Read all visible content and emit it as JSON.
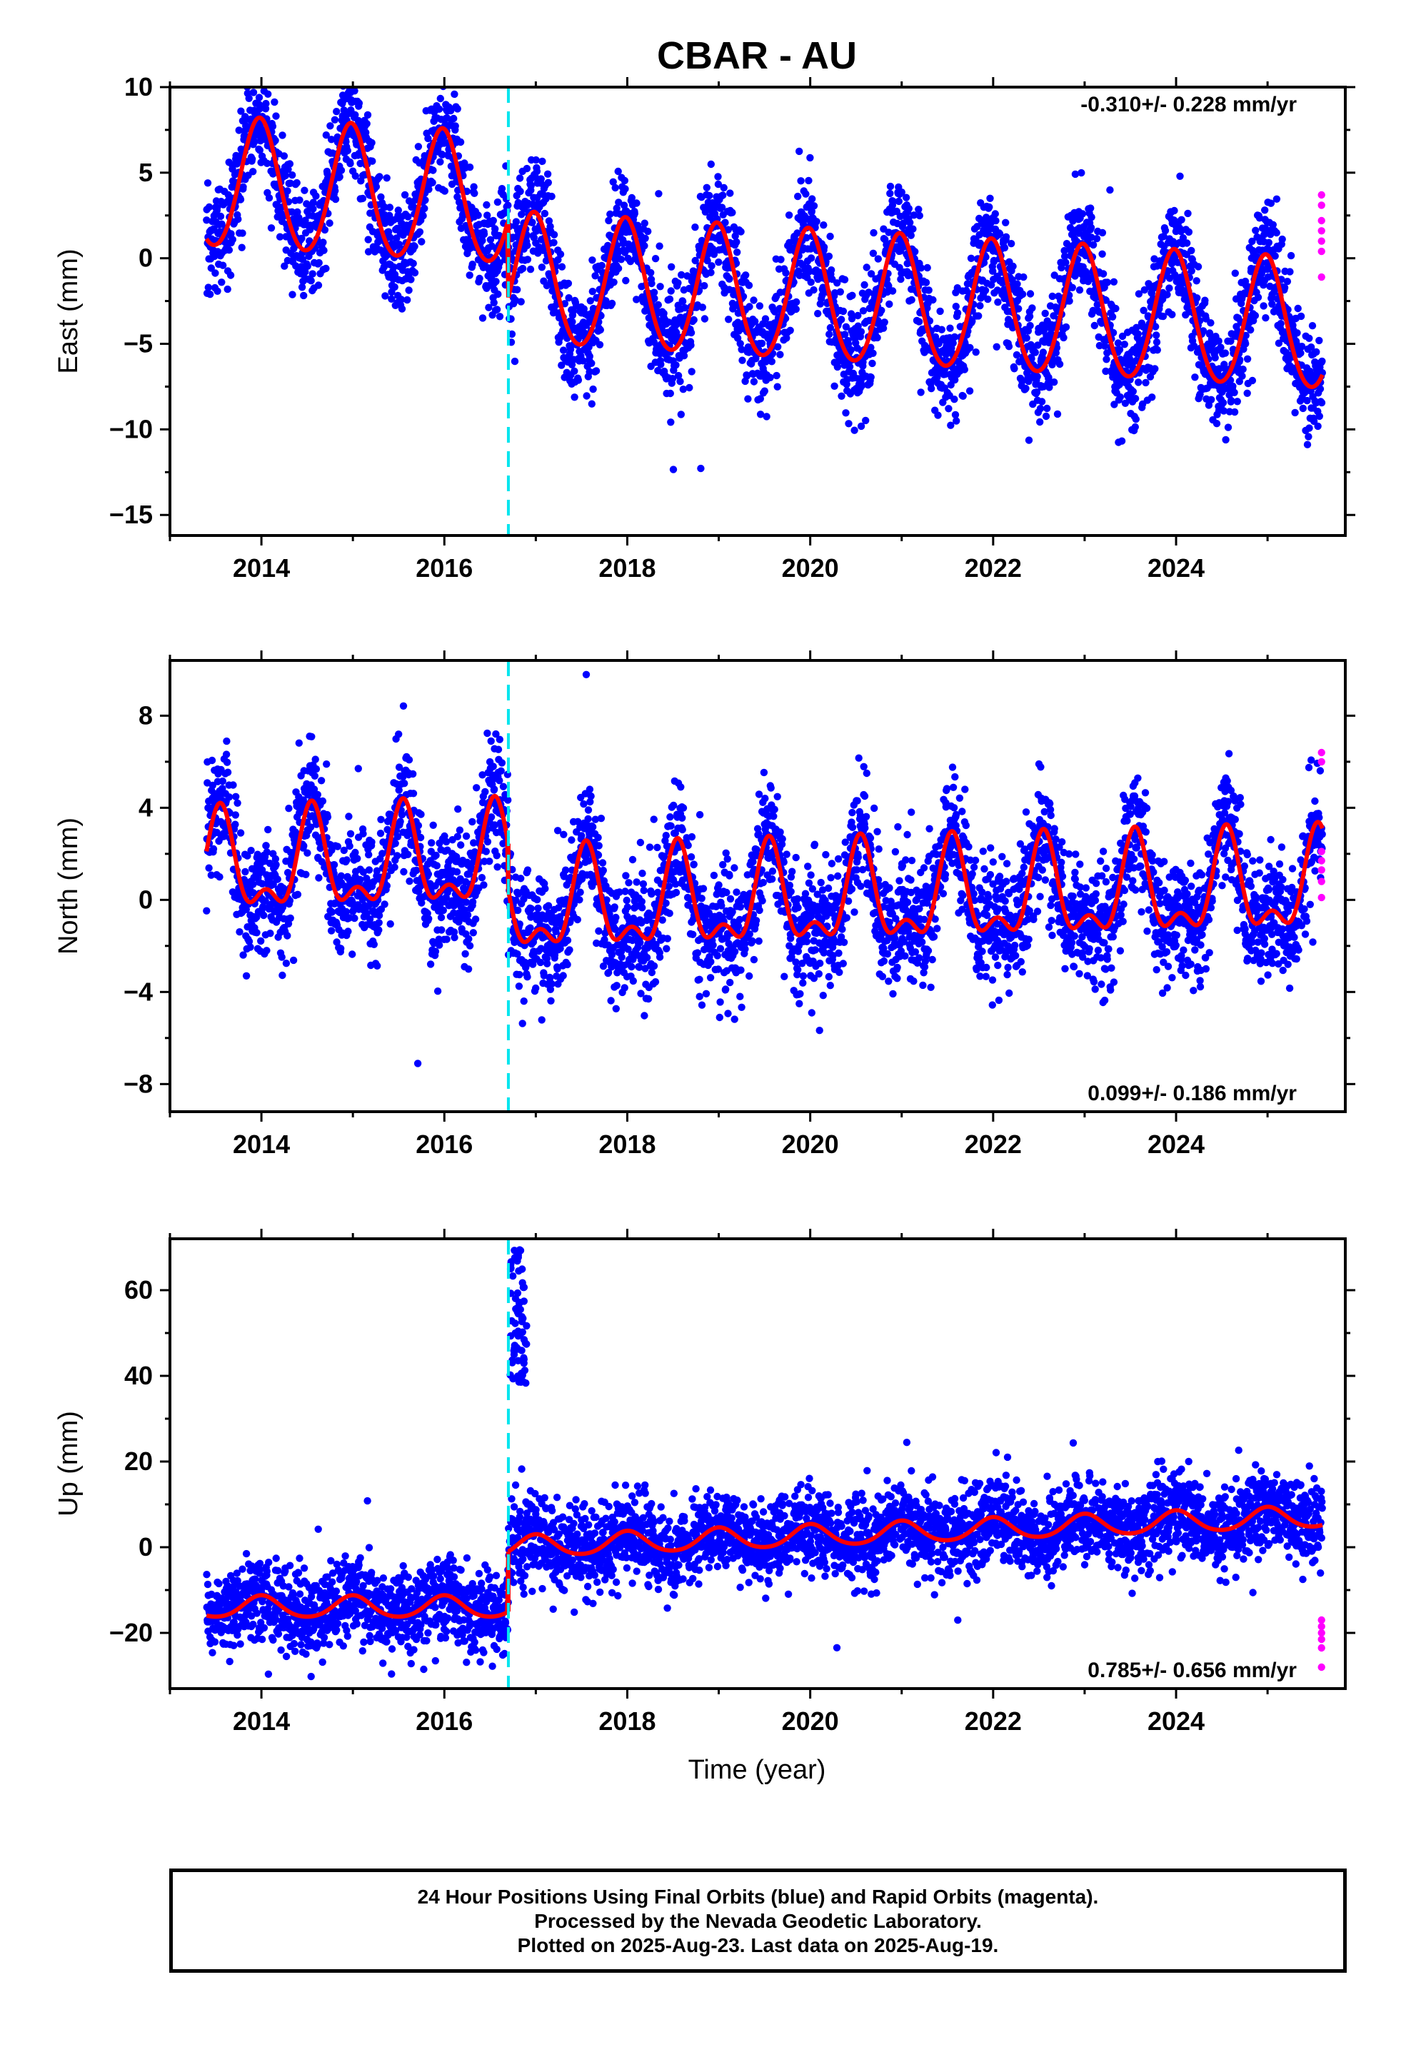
{
  "chart_data": [
    {
      "type": "scatter",
      "title": "CBAR - AU",
      "ylabel": "East (mm)",
      "xlim": [
        2013.0,
        2025.85
      ],
      "ylim": [
        -16.2,
        10.0
      ],
      "yticks": [
        10,
        5,
        0,
        -5,
        -10,
        -15
      ],
      "xticks": [
        2014,
        2016,
        2018,
        2020,
        2022,
        2024
      ],
      "grid": false,
      "rate_annotation": "-0.310+/- 0.228 mm/yr",
      "rate_annotation_position": "top-right",
      "equipment_change_year": 2016.7,
      "model": {
        "trend_segments": [
          {
            "from": 2013.4,
            "to": 2016.7,
            "intercept_at_start": 4.3,
            "slope_mm_per_yr": -0.31
          },
          {
            "from": 2016.7,
            "to": 2025.6,
            "intercept_at_start": -1.3,
            "slope_mm_per_yr": -0.31
          }
        ],
        "annual_amplitude": 3.8,
        "annual_peak_fraction": 0.98,
        "semiannual_amplitude": 0.3,
        "scatter_sd": 1.6
      },
      "series": [
        {
          "name": "Final Orbits",
          "color": "#0000ff",
          "kind": "points",
          "n": 3900
        },
        {
          "name": "Rapid Orbits",
          "color": "#ff00ff",
          "kind": "points",
          "x": [
            2025.59,
            2025.59,
            2025.59,
            2025.59,
            2025.59,
            2025.59,
            2025.59
          ],
          "y": [
            3.7,
            3.1,
            2.2,
            1.6,
            1.0,
            0.4,
            -1.1
          ]
        },
        {
          "name": "Model",
          "color": "#ff0000",
          "kind": "line"
        }
      ]
    },
    {
      "type": "scatter",
      "ylabel": "North (mm)",
      "xlim": [
        2013.0,
        2025.85
      ],
      "ylim": [
        -9.2,
        10.4
      ],
      "yticks": [
        8,
        4,
        0,
        -4,
        -8
      ],
      "xticks": [
        2014,
        2016,
        2018,
        2020,
        2022,
        2024
      ],
      "grid": false,
      "rate_annotation": "0.099+/- 0.186 mm/yr",
      "rate_annotation_position": "bottom-right",
      "equipment_change_year": 2016.7,
      "model": {
        "trend_segments": [
          {
            "from": 2013.4,
            "to": 2016.7,
            "intercept_at_start": 1.3,
            "slope_mm_per_yr": 0.1
          },
          {
            "from": 2016.7,
            "to": 2025.6,
            "intercept_at_start": -0.4,
            "slope_mm_per_yr": 0.1
          }
        ],
        "annual_amplitude": 1.9,
        "annual_peak_fraction": 0.55,
        "semiannual_amplitude": 1.0,
        "scatter_sd": 1.3
      },
      "series": [
        {
          "name": "Final Orbits",
          "color": "#0000ff",
          "kind": "points",
          "n": 3900
        },
        {
          "name": "Rapid Orbits",
          "color": "#ff00ff",
          "kind": "points",
          "x": [
            2025.59,
            2025.59,
            2025.59,
            2025.59,
            2025.59,
            2025.59,
            2025.59
          ],
          "y": [
            6.4,
            6.0,
            2.1,
            1.7,
            1.3,
            0.8,
            0.1
          ]
        },
        {
          "name": "Model",
          "color": "#ff0000",
          "kind": "line"
        }
      ]
    },
    {
      "type": "scatter",
      "ylabel": "Up (mm)",
      "xlabel": "Time (year)",
      "xlim": [
        2013.0,
        2025.85
      ],
      "ylim": [
        -33,
        72
      ],
      "yticks": [
        60,
        40,
        20,
        0,
        -20
      ],
      "xticks": [
        2014,
        2016,
        2018,
        2020,
        2022,
        2024
      ],
      "grid": false,
      "rate_annotation": "0.785+/- 0.656 mm/yr",
      "rate_annotation_position": "bottom-right",
      "equipment_change_year": 2016.7,
      "outlier_cluster": {
        "x_from": 2016.72,
        "x_to": 2016.9,
        "y_from": 38,
        "y_to": 70
      },
      "model": {
        "trend_segments": [
          {
            "from": 2013.4,
            "to": 2016.7,
            "intercept_at_start": -14.0,
            "slope_mm_per_yr": 0.0
          },
          {
            "from": 2016.7,
            "to": 2025.6,
            "intercept_at_start": 0.0,
            "slope_mm_per_yr": 0.8
          }
        ],
        "annual_amplitude": 2.5,
        "annual_peak_fraction": 0.0,
        "semiannual_amplitude": 0.3,
        "scatter_sd": 4.8
      },
      "series": [
        {
          "name": "Final Orbits",
          "color": "#0000ff",
          "kind": "points",
          "n": 3900
        },
        {
          "name": "Rapid Orbits",
          "color": "#ff00ff",
          "kind": "points",
          "x": [
            2025.59,
            2025.59,
            2025.59,
            2025.59,
            2025.59,
            2025.59
          ],
          "y": [
            -17.0,
            -18.5,
            -20.0,
            -21.5,
            -23.5,
            -28.0
          ]
        },
        {
          "name": "Model",
          "color": "#ff0000",
          "kind": "line"
        }
      ]
    }
  ],
  "colors": {
    "final_points": "#0000ff",
    "rapid_points": "#ff00ff",
    "model_line": "#ff0000",
    "equipment_change_line": "#00e5ee"
  },
  "footer": {
    "line1": "24 Hour Positions Using Final Orbits (blue) and Rapid Orbits (magenta).",
    "line2": "Processed by the Nevada Geodetic Laboratory.",
    "line3": "Plotted on 2025-Aug-23. Last data on 2025-Aug-19."
  }
}
